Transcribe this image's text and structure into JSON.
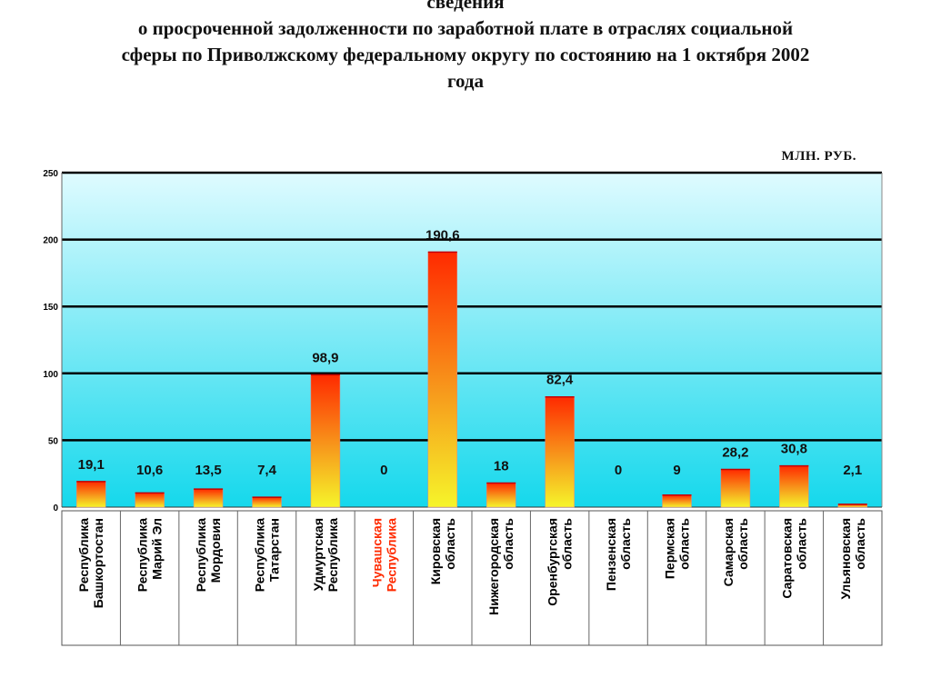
{
  "header": {
    "title_line1": "сведения",
    "title_line2": "о просроченной задолженности по заработной плате в отраслях социальной",
    "title_line3": "сферы  по Приволжскому федеральному округу по состоянию на 1 октября 2002",
    "title_line4": "года"
  },
  "chart_data": {
    "type": "bar",
    "unit_label": "МЛН. РУБ.",
    "ylim": [
      0,
      250
    ],
    "yticks": [
      0,
      50,
      100,
      150,
      200,
      250
    ],
    "grid": true,
    "categories": [
      [
        "Республика",
        "Башкортостан"
      ],
      [
        "Республика",
        "Марий Эл"
      ],
      [
        "Республика",
        "Мордовия"
      ],
      [
        "Республика",
        "Татарстан"
      ],
      [
        "Удмуртская",
        "Республика"
      ],
      [
        "Чувашская",
        "Республика"
      ],
      [
        "Кировская",
        "область"
      ],
      [
        "Нижегородская",
        "область"
      ],
      [
        "Оренбургская",
        "область"
      ],
      [
        "Пензенская",
        "область"
      ],
      [
        "Пермская",
        "область"
      ],
      [
        "Самарская",
        "область"
      ],
      [
        "Саратовская",
        "область"
      ],
      [
        "Ульяновская",
        "область"
      ]
    ],
    "values": [
      19.1,
      10.6,
      13.5,
      7.4,
      98.9,
      0,
      190.6,
      18,
      82.4,
      0,
      9,
      28.2,
      30.8,
      2.1
    ],
    "value_labels": [
      "19,1",
      "10,6",
      "13,5",
      "7,4",
      "98,9",
      "0",
      "190,6",
      "18",
      "82,4",
      "0",
      "9",
      "28,2",
      "30,8",
      "2,1"
    ],
    "highlight_index": 5,
    "colors": {
      "plot_top": "#dffbff",
      "plot_bottom": "#15d8ec",
      "bar_top": "#ff2a00",
      "bar_bottom": "#f6f52a",
      "highlight_label": "#ff2a00",
      "grid": "#000000"
    }
  }
}
